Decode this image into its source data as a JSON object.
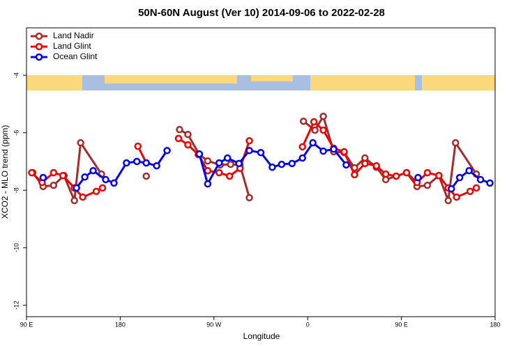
{
  "chart_data": {
    "type": "line",
    "title": "50N-60N August (Ver 10)   2014-09-06 to 2022-02-28",
    "x_label": "Longitude",
    "y_label": "XCO2 - MLO trend (ppm)",
    "xlim": [
      90,
      540
    ],
    "xticks": [
      {
        "value": 90,
        "label": "90 E"
      },
      {
        "value": 180,
        "label": "180"
      },
      {
        "value": 270,
        "label": "90 W"
      },
      {
        "value": 360,
        "label": "0"
      },
      {
        "value": 450,
        "label": "90 E"
      },
      {
        "value": 540,
        "label": "180"
      }
    ],
    "ylim": [
      -12.4,
      -2.35
    ],
    "yticks": [
      -4,
      -6,
      -8,
      -10,
      -12
    ],
    "legend": "top-left",
    "series": [
      {
        "name": "Land Nadir",
        "color": "#a52a2a",
        "x": [
          96,
          106,
          116,
          126,
          136,
          142,
          162,
          null,
          205,
          null,
          237,
          245,
          256,
          264,
          276,
          286,
          295,
          304,
          null,
          356,
          367,
          375,
          385,
          395,
          405,
          415,
          426,
          435,
          445,
          455,
          465,
          475,
          486,
          495,
          502,
          522
        ],
        "values": [
          -7.39,
          -7.87,
          -7.83,
          -7.49,
          -8.36,
          -6.35,
          -7.44,
          null,
          -7.51,
          null,
          -5.89,
          -6.06,
          -6.76,
          -6.98,
          -7.12,
          -7.1,
          -7.12,
          -8.26,
          null,
          -5.6,
          -5.91,
          -5.43,
          -6.66,
          -6.69,
          -7.22,
          -6.88,
          -7.2,
          -7.63,
          -7.51,
          -7.39,
          -7.87,
          -7.83,
          -7.49,
          -8.36,
          -6.35,
          -7.44
        ]
      },
      {
        "name": "Land Glint",
        "color": "#ee0000",
        "x": [
          95,
          105,
          116,
          125,
          136,
          144,
          157,
          163,
          null,
          197,
          205,
          null,
          236,
          245,
          255,
          264,
          275,
          285,
          295,
          304,
          null,
          355,
          366,
          375,
          385,
          395,
          405,
          415,
          426,
          435,
          445,
          455,
          465,
          475,
          486,
          495,
          503,
          516,
          522
        ],
        "values": [
          -7.39,
          -7.73,
          -7.39,
          -7.49,
          -7.92,
          -8.24,
          -8.04,
          -7.92,
          null,
          -6.47,
          -7.05,
          null,
          -6.2,
          -6.42,
          -6.76,
          -7.32,
          -7.39,
          -7.51,
          -7.24,
          -6.28,
          null,
          -6.49,
          -5.62,
          -5.91,
          -6.54,
          -6.66,
          -7.46,
          -7.07,
          -7.15,
          -7.44,
          -7.51,
          -7.39,
          -7.73,
          -7.39,
          -7.49,
          -7.92,
          -8.24,
          -8.04,
          -7.92
        ]
      },
      {
        "name": "Ocean Glint",
        "color": "#0000ee",
        "x": [
          106,
          null,
          138,
          146,
          154,
          166,
          174,
          186,
          196,
          205,
          215,
          225,
          null,
          256,
          264,
          275,
          283,
          294,
          304,
          315,
          326,
          335,
          345,
          355,
          365,
          375,
          385,
          397,
          null,
          466,
          null,
          498,
          506,
          515,
          526,
          535
        ],
        "values": [
          -7.56,
          null,
          -7.92,
          -7.54,
          -7.32,
          -7.63,
          -7.75,
          -7.05,
          -7.0,
          -7.05,
          -7.15,
          -6.62,
          null,
          -6.74,
          -7.78,
          -7.05,
          -6.88,
          -7.07,
          -6.62,
          -6.69,
          -7.2,
          -7.1,
          -7.07,
          -6.88,
          -6.35,
          -6.64,
          -6.57,
          -7.12,
          null,
          -7.56,
          null,
          -7.95,
          -7.56,
          -7.32,
          -7.63,
          -7.75
        ]
      }
    ]
  }
}
